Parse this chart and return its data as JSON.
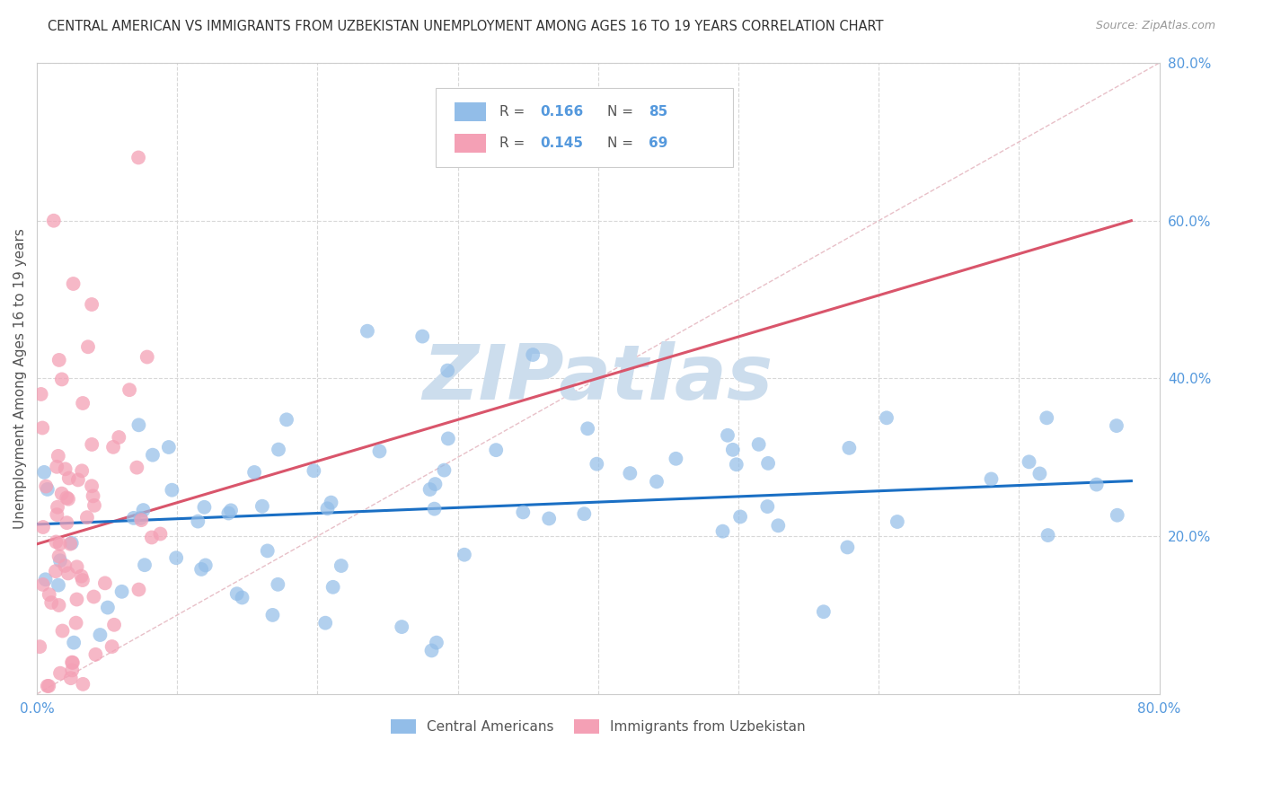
{
  "title": "CENTRAL AMERICAN VS IMMIGRANTS FROM UZBEKISTAN UNEMPLOYMENT AMONG AGES 16 TO 19 YEARS CORRELATION CHART",
  "source": "Source: ZipAtlas.com",
  "ylabel": "Unemployment Among Ages 16 to 19 years",
  "xlim": [
    0.0,
    0.8
  ],
  "ylim": [
    0.0,
    0.8
  ],
  "R_blue": 0.166,
  "N_blue": 85,
  "R_pink": 0.145,
  "N_pink": 69,
  "legend_label_blue": "Central Americans",
  "legend_label_pink": "Immigrants from Uzbekistan",
  "blue_color": "#92bde8",
  "pink_color": "#f4a0b5",
  "blue_line_color": "#1a6fc4",
  "pink_line_color": "#d9556b",
  "diag_line_color": "#e8c0c8",
  "diag_line_style": "--",
  "watermark": "ZIPatlas",
  "watermark_color": "#ccdded",
  "background_color": "#ffffff",
  "grid_color": "#d8d8d8",
  "title_color": "#333333",
  "axis_label_color": "#555555",
  "tick_label_color": "#5599dd",
  "seed_blue": 12,
  "seed_pink": 7
}
